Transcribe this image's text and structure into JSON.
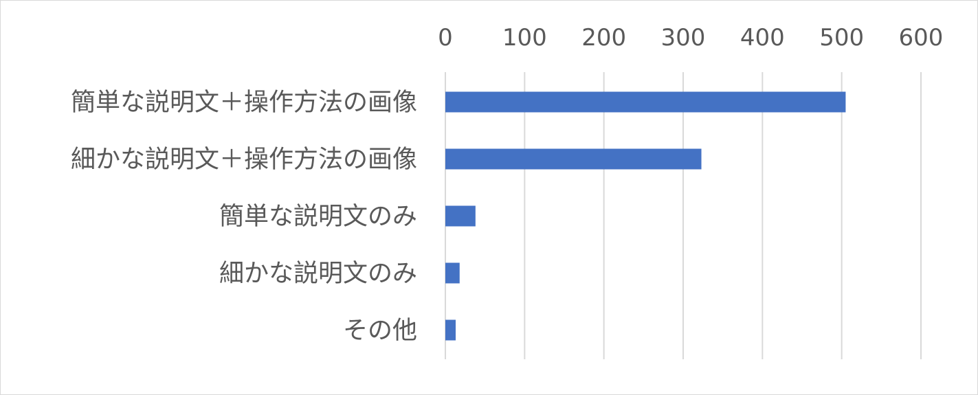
{
  "chart_data": {
    "type": "bar",
    "orientation": "horizontal",
    "categories": [
      "簡単な説明文＋操作方法の画像",
      "細かな説明文＋操作方法の画像",
      "簡単な説明文のみ",
      "細かな説明文のみ",
      "その他"
    ],
    "values": [
      505,
      323,
      38,
      18,
      13
    ],
    "x_ticks": [
      "0",
      "100",
      "200",
      "300",
      "400",
      "500",
      "600"
    ],
    "xlim": [
      0,
      600
    ],
    "x_axis_position": "top",
    "grid": true,
    "legend": "none",
    "bar_color": "#4472c4",
    "grid_color": "#d9d9d9",
    "text_color": "#595959"
  }
}
